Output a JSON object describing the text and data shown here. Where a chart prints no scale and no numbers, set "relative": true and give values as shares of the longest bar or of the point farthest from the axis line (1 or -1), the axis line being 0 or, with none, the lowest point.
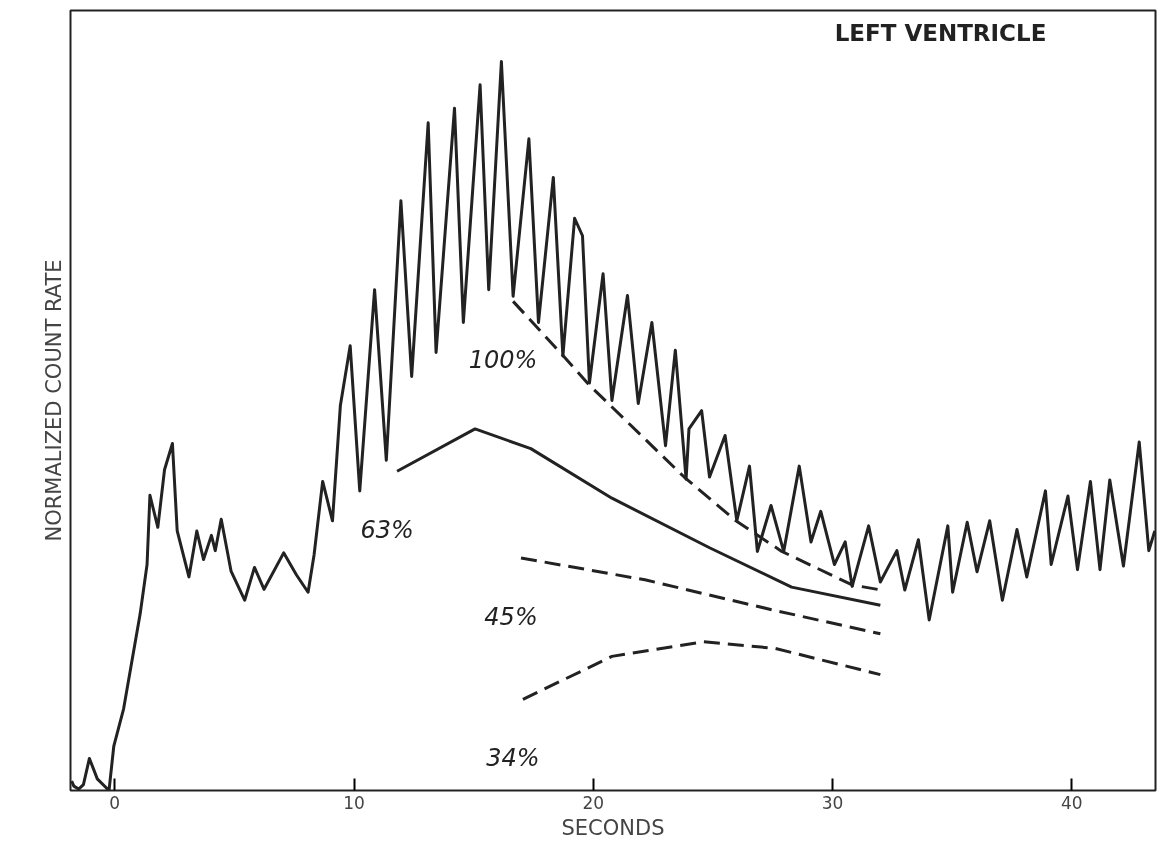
{
  "chart_data": {
    "type": "line",
    "title": "LEFT VENTRICLE",
    "xlabel": "SECONDS",
    "ylabel": "NORMALIZED COUNT RATE",
    "relative": true,
    "xlim": [
      -1.85,
      43.5
    ],
    "xticks": [
      0,
      10,
      20,
      30,
      40
    ],
    "grid": false,
    "legend": false,
    "marker": "none",
    "series": [
      {
        "color": "#222222",
        "line_style": "solid",
        "x": [
          -1.8,
          -1.71,
          -1.51,
          -1.31,
          -1.06,
          -0.73,
          -0.24,
          -0.04,
          0.37,
          1.06,
          1.35,
          1.47,
          1.8,
          2.08,
          2.41,
          2.61,
          3.1,
          3.43,
          3.71,
          4.04,
          4.2,
          4.45,
          4.86,
          5.43,
          5.84,
          6.24,
          7.06,
          7.59,
          8.08,
          8.33,
          8.69,
          9.1,
          9.43,
          9.84,
          10.24,
          10.86,
          11.35,
          11.96,
          12.41,
          13.1,
          13.43,
          14.2,
          14.57,
          15.27,
          15.63,
          16.16,
          16.65,
          17.31,
          17.71,
          18.33,
          18.73,
          19.22,
          19.55,
          19.84,
          20.41,
          20.78,
          21.43,
          21.88,
          22.45,
          23.02,
          23.43,
          23.88,
          24.0,
          24.53,
          24.86,
          25.51,
          26.0,
          26.53,
          26.86,
          27.43,
          27.96,
          28.61,
          29.1,
          29.51,
          30.08,
          30.53,
          30.82,
          31.51,
          32.0,
          32.69,
          33.02,
          33.59,
          34.04,
          34.82,
          35.02,
          35.63,
          36.04,
          36.57,
          37.1,
          37.71,
          38.12,
          38.9,
          39.14,
          39.84,
          40.24,
          40.78,
          41.18,
          41.59,
          42.16,
          42.82,
          43.22,
          43.47
        ],
        "values": [
          0.013,
          0.006,
          0.002,
          0.008,
          0.044,
          0.016,
          0.0,
          0.061,
          0.112,
          0.242,
          0.31,
          0.405,
          0.361,
          0.44,
          0.476,
          0.356,
          0.293,
          0.356,
          0.317,
          0.35,
          0.329,
          0.372,
          0.301,
          0.261,
          0.306,
          0.276,
          0.326,
          0.296,
          0.272,
          0.323,
          0.424,
          0.37,
          0.528,
          0.61,
          0.411,
          0.687,
          0.453,
          0.809,
          0.568,
          0.916,
          0.601,
          0.936,
          0.642,
          0.968,
          0.687,
          1.0,
          0.678,
          0.894,
          0.642,
          0.841,
          0.596,
          0.785,
          0.761,
          0.559,
          0.709,
          0.535,
          0.679,
          0.531,
          0.642,
          0.473,
          0.604,
          0.427,
          0.496,
          0.521,
          0.43,
          0.487,
          0.37,
          0.445,
          0.328,
          0.391,
          0.328,
          0.445,
          0.341,
          0.383,
          0.31,
          0.341,
          0.28,
          0.363,
          0.286,
          0.329,
          0.275,
          0.344,
          0.234,
          0.363,
          0.272,
          0.368,
          0.3,
          0.37,
          0.261,
          0.358,
          0.293,
          0.411,
          0.31,
          0.404,
          0.303,
          0.424,
          0.303,
          0.426,
          0.308,
          0.478,
          0.329,
          0.356
        ]
      },
      {
        "name": "100%",
        "color": "#222222",
        "line_style": "dashed",
        "x": [
          16.65,
          18.78,
          19.84,
          23.8,
          25.96,
          27.88,
          30.82,
          32.04
        ],
        "values": [
          0.671,
          0.595,
          0.556,
          0.43,
          0.37,
          0.328,
          0.282,
          0.275
        ]
      },
      {
        "name": "63%",
        "color": "#222222",
        "line_style": "solid",
        "x": [
          11.8,
          15.06,
          17.39,
          20.78,
          24.86,
          28.29,
          32.0
        ],
        "values": [
          0.438,
          0.496,
          0.469,
          0.401,
          0.333,
          0.279,
          0.254
        ]
      },
      {
        "name": "45%",
        "color": "#222222",
        "line_style": "dashed",
        "x": [
          16.98,
          22.16,
          27.59,
          32.0
        ],
        "values": [
          0.319,
          0.289,
          0.247,
          0.215
        ]
      },
      {
        "name": "34%",
        "color": "#222222",
        "line_style": "dashed",
        "x": [
          17.06,
          20.78,
          24.61,
          27.59,
          32.0
        ],
        "values": [
          0.125,
          0.184,
          0.204,
          0.195,
          0.159
        ]
      }
    ]
  }
}
